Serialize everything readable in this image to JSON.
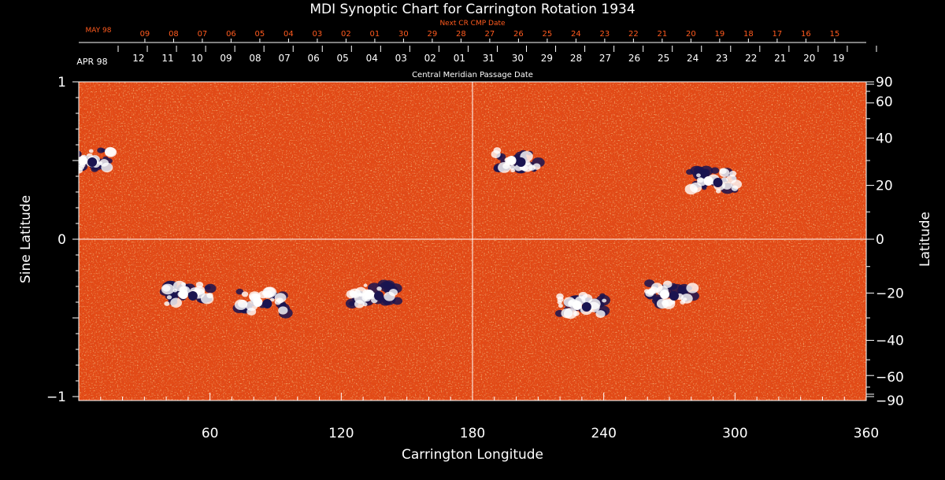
{
  "chart_data": {
    "type": "heatmap",
    "title": "MDI Synoptic Chart for Carrington Rotation 1934",
    "xlabel": "Carrington Longitude",
    "ylabel_left": "Sine Latitude",
    "ylabel_right": "Latitude",
    "xlim": [
      0,
      360
    ],
    "ylim": [
      -1,
      1
    ],
    "x_ticks": [
      "60",
      "120",
      "180",
      "240",
      "300",
      "360"
    ],
    "y_ticks_left": [
      "1",
      "0",
      "−1"
    ],
    "y_ticks_right": [
      "90",
      "60",
      "40",
      "20",
      "0",
      "−20",
      "−40",
      "−60",
      "−90"
    ],
    "top_axis": {
      "label": "Central Meridian Passage Date",
      "start_month": "APR 98",
      "dates": [
        "12",
        "11",
        "10",
        "09",
        "08",
        "07",
        "06",
        "05",
        "04",
        "03",
        "02",
        "01",
        "31",
        "30",
        "29",
        "28",
        "27",
        "26",
        "25",
        "24",
        "23",
        "22",
        "21",
        "20",
        "19"
      ]
    },
    "next_axis": {
      "label": "Next CR CMP Date",
      "start_month": "MAY 98",
      "dates": [
        "09",
        "08",
        "07",
        "06",
        "05",
        "04",
        "03",
        "02",
        "01",
        "30",
        "29",
        "28",
        "27",
        "26",
        "25",
        "24",
        "23",
        "22",
        "21",
        "20",
        "19",
        "18",
        "17",
        "16",
        "15"
      ]
    },
    "grid_lines": {
      "longitude": 180,
      "sine_latitude": 0
    },
    "colors": {
      "background": "#000000",
      "field": "#e8501a",
      "positive": "#ffffff",
      "negative": "#1a1450",
      "axis": "#ffffff",
      "next_axis": "#ff5a1e"
    },
    "regions": [
      {
        "lon": 4,
        "lat": 0.5,
        "polarity": "bipolar"
      },
      {
        "lon": 50,
        "lat": -0.35,
        "polarity": "bipolar"
      },
      {
        "lon": 84,
        "lat": -0.4,
        "polarity": "bipolar"
      },
      {
        "lon": 135,
        "lat": -0.35,
        "polarity": "bipolar"
      },
      {
        "lon": 200,
        "lat": 0.5,
        "polarity": "bipolar"
      },
      {
        "lon": 290,
        "lat": 0.37,
        "polarity": "bipolar"
      },
      {
        "lon": 230,
        "lat": -0.42,
        "polarity": "bipolar"
      },
      {
        "lon": 270,
        "lat": -0.35,
        "polarity": "bipolar"
      }
    ]
  }
}
